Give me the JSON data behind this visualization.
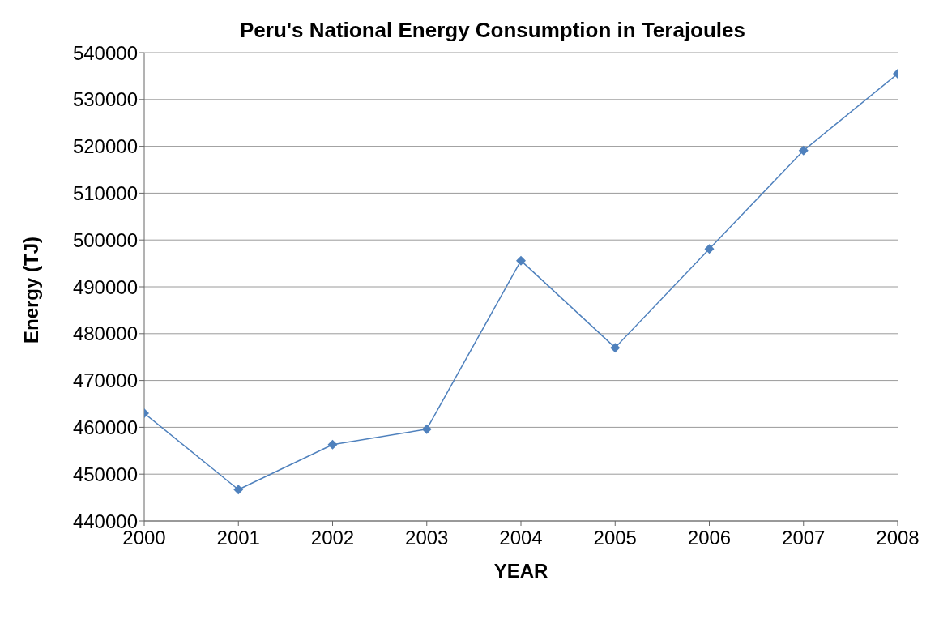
{
  "chart_data": {
    "type": "line",
    "title": "Peru's National Energy Consumption in Terajoules",
    "xlabel": "YEAR",
    "ylabel": "Energy (TJ)",
    "x": [
      2000,
      2001,
      2002,
      2003,
      2004,
      2005,
      2006,
      2007,
      2008
    ],
    "series": [
      {
        "color": "#4f81bd",
        "values": [
          463000,
          446700,
          456300,
          459600,
          495600,
          477000,
          498100,
          519100,
          535500
        ]
      }
    ],
    "xlim": [
      2000,
      2008
    ],
    "xticks": [
      2000,
      2001,
      2002,
      2003,
      2004,
      2005,
      2006,
      2007,
      2008
    ],
    "ylim": [
      440000,
      540000
    ],
    "yticks": [
      440000,
      450000,
      460000,
      470000,
      480000,
      490000,
      500000,
      510000,
      520000,
      530000,
      540000
    ],
    "grid": "y",
    "legend": false,
    "marker": "diamond",
    "line_style": "solid"
  }
}
